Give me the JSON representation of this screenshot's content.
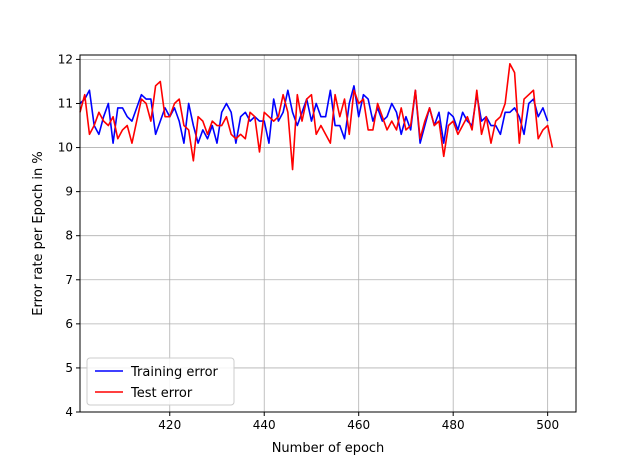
{
  "chart_data": {
    "type": "line",
    "xlabel": "Number of epoch",
    "ylabel": "Error rate per Epoch in %",
    "xlim": [
      401,
      506
    ],
    "ylim": [
      4,
      12.1
    ],
    "xticks": [
      420,
      440,
      460,
      480,
      500
    ],
    "yticks": [
      4,
      5,
      6,
      7,
      8,
      9,
      10,
      11,
      12
    ],
    "xtick_labels": [
      "420",
      "440",
      "460",
      "480",
      "500"
    ],
    "ytick_labels": [
      "4",
      "5",
      "6",
      "7",
      "8",
      "9",
      "10",
      "11",
      "12"
    ],
    "grid": true,
    "legend_position": "bottom-left",
    "x": [
      401,
      402,
      403,
      404,
      405,
      406,
      407,
      408,
      409,
      410,
      411,
      412,
      413,
      414,
      415,
      416,
      417,
      418,
      419,
      420,
      421,
      422,
      423,
      424,
      425,
      426,
      427,
      428,
      429,
      430,
      431,
      432,
      433,
      434,
      435,
      436,
      437,
      438,
      439,
      440,
      441,
      442,
      443,
      444,
      445,
      446,
      447,
      448,
      449,
      450,
      451,
      452,
      453,
      454,
      455,
      456,
      457,
      458,
      459,
      460,
      461,
      462,
      463,
      464,
      465,
      466,
      467,
      468,
      469,
      470,
      471,
      472,
      473,
      474,
      475,
      476,
      477,
      478,
      479,
      480,
      481,
      482,
      483,
      484,
      485,
      486,
      487,
      488,
      489,
      490,
      491,
      492,
      493,
      494,
      495,
      496,
      497,
      498,
      499,
      500,
      501
    ],
    "series": [
      {
        "name": "Training error",
        "color": "#0000ff",
        "values": [
          11.0,
          11.1,
          11.3,
          10.5,
          10.3,
          10.7,
          11.0,
          10.1,
          10.9,
          10.9,
          10.7,
          10.6,
          10.9,
          11.2,
          11.1,
          11.1,
          10.3,
          10.6,
          10.9,
          10.7,
          10.9,
          10.6,
          10.1,
          11.0,
          10.5,
          10.1,
          10.4,
          10.2,
          10.5,
          10.1,
          10.8,
          11.0,
          10.8,
          10.1,
          10.7,
          10.8,
          10.6,
          10.7,
          10.6,
          10.6,
          10.1,
          11.1,
          10.6,
          10.8,
          11.3,
          10.8,
          10.5,
          10.8,
          11.1,
          10.6,
          11.0,
          10.7,
          10.7,
          11.3,
          10.5,
          10.5,
          10.2,
          11.0,
          11.4,
          10.7,
          11.2,
          11.1,
          10.6,
          10.9,
          10.6,
          10.7,
          11.0,
          10.8,
          10.3,
          10.7,
          10.4,
          11.3,
          10.1,
          10.5,
          10.9,
          10.5,
          10.8,
          10.1,
          10.8,
          10.7,
          10.4,
          10.8,
          10.6,
          10.5,
          11.2,
          10.6,
          10.7,
          10.5,
          10.5,
          10.3,
          10.8,
          10.8,
          10.9,
          10.7,
          10.3,
          11.0,
          11.1,
          10.7,
          10.9,
          10.6,
          null
        ]
      },
      {
        "name": "Test error",
        "color": "#ff0000",
        "values": [
          10.8,
          11.2,
          10.3,
          10.5,
          10.8,
          10.6,
          10.5,
          10.7,
          10.2,
          10.4,
          10.5,
          10.1,
          10.6,
          11.1,
          11.0,
          10.6,
          11.4,
          11.5,
          10.7,
          10.7,
          11.0,
          11.1,
          10.5,
          10.4,
          9.7,
          10.7,
          10.6,
          10.3,
          10.6,
          10.5,
          10.5,
          10.7,
          10.3,
          10.2,
          10.3,
          10.2,
          10.8,
          10.7,
          9.9,
          10.8,
          10.7,
          10.6,
          10.7,
          11.2,
          10.8,
          9.5,
          11.2,
          10.6,
          11.1,
          11.2,
          10.3,
          10.5,
          10.3,
          10.1,
          11.2,
          10.7,
          11.1,
          10.3,
          11.3,
          11.0,
          11.1,
          10.4,
          10.4,
          11.0,
          10.7,
          10.4,
          10.6,
          10.4,
          10.9,
          10.4,
          10.5,
          11.3,
          10.2,
          10.6,
          10.9,
          10.5,
          10.6,
          9.8,
          10.5,
          10.6,
          10.3,
          10.5,
          10.7,
          10.4,
          11.3,
          10.3,
          10.7,
          10.1,
          10.6,
          10.7,
          11.0,
          11.9,
          11.7,
          10.1,
          11.1,
          11.2,
          11.3,
          10.2,
          10.4,
          10.5,
          10.0
        ]
      }
    ]
  }
}
